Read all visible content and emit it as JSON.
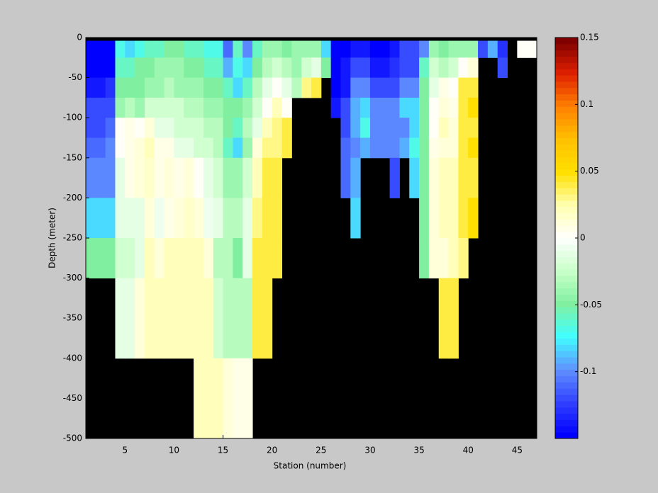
{
  "chart_data": {
    "type": "heatmap",
    "xlabel": "Station (number)",
    "ylabel": "Depth (meter)",
    "xlim": [
      1,
      47
    ],
    "ylim": [
      -500,
      0
    ],
    "xticks": [
      5,
      10,
      15,
      20,
      25,
      30,
      35,
      40,
      45
    ],
    "yticks": [
      0,
      -50,
      -100,
      -150,
      -200,
      -250,
      -300,
      -350,
      -400,
      -450,
      -500
    ],
    "x_edges": [
      1,
      2,
      3,
      4,
      5,
      6,
      7,
      8,
      9,
      10,
      11,
      12,
      13,
      14,
      15,
      16,
      17,
      18,
      19,
      20,
      21,
      22,
      23,
      24,
      25,
      26,
      27,
      28,
      29,
      30,
      31,
      32,
      33,
      34,
      35,
      36,
      37,
      38,
      39,
      40,
      41,
      42,
      43,
      44,
      45,
      46,
      47
    ],
    "y_edges": [
      -4,
      -25,
      -50,
      -75,
      -100,
      -125,
      -150,
      -200,
      -250,
      -300,
      -400,
      -500
    ],
    "z": [
      [
        -0.15,
        -0.15,
        -0.14,
        -0.12,
        -0.12,
        -0.11,
        -0.1,
        -0.08,
        -0.05,
        null,
        null
      ],
      [
        -0.15,
        -0.15,
        -0.14,
        -0.12,
        -0.12,
        -0.11,
        -0.1,
        -0.08,
        -0.05,
        null,
        null
      ],
      [
        -0.15,
        -0.15,
        -0.13,
        -0.12,
        -0.11,
        -0.1,
        -0.1,
        -0.08,
        -0.05,
        null,
        null
      ],
      [
        -0.07,
        -0.06,
        -0.05,
        -0.04,
        0,
        0,
        -0.01,
        -0.01,
        -0.02,
        -0.01,
        null
      ],
      [
        -0.08,
        -0.06,
        -0.05,
        -0.03,
        0.005,
        0.005,
        0.005,
        -0.01,
        -0.02,
        -0.01,
        null
      ],
      [
        -0.07,
        -0.05,
        -0.05,
        -0.04,
        0,
        0.01,
        0.01,
        -0.01,
        -0.01,
        0.01,
        null
      ],
      [
        -0.06,
        -0.05,
        -0.04,
        -0.02,
        0.01,
        0.02,
        0.015,
        0.01,
        0.02,
        0.02,
        null
      ],
      [
        -0.06,
        -0.04,
        -0.04,
        -0.02,
        -0.01,
        0.005,
        0.005,
        -0.005,
        0.01,
        0.02,
        null
      ],
      [
        -0.05,
        -0.04,
        -0.03,
        -0.02,
        -0.01,
        0.005,
        0.01,
        0.005,
        0.02,
        0.02,
        null
      ],
      [
        -0.05,
        -0.04,
        -0.04,
        -0.02,
        -0.02,
        -0.01,
        0.005,
        0.01,
        0.02,
        0.02,
        null
      ],
      [
        -0.06,
        -0.05,
        -0.04,
        -0.03,
        -0.02,
        -0.01,
        0.01,
        0.015,
        0.02,
        0.02,
        null
      ],
      [
        -0.06,
        -0.05,
        -0.04,
        -0.03,
        -0.02,
        -0.02,
        0,
        0.01,
        0.02,
        0.02,
        0.02
      ],
      [
        -0.07,
        -0.06,
        -0.05,
        -0.04,
        -0.03,
        -0.02,
        -0.01,
        -0.005,
        0.01,
        0.02,
        0.02
      ],
      [
        -0.07,
        -0.06,
        -0.05,
        -0.04,
        -0.03,
        -0.03,
        -0.02,
        -0.01,
        -0.03,
        -0.02,
        0.02
      ],
      [
        -0.11,
        -0.09,
        -0.06,
        -0.05,
        -0.05,
        -0.06,
        -0.04,
        -0.03,
        -0.03,
        -0.03,
        0.01
      ],
      [
        -0.06,
        -0.07,
        -0.08,
        -0.05,
        -0.06,
        -0.08,
        -0.04,
        -0.03,
        -0.05,
        -0.03,
        0.005
      ],
      [
        -0.1,
        -0.08,
        -0.06,
        -0.04,
        -0.03,
        -0.04,
        -0.02,
        -0.01,
        -0.01,
        -0.03,
        0.005
      ],
      [
        -0.06,
        -0.05,
        -0.03,
        -0.02,
        -0.01,
        0.01,
        0.02,
        0.03,
        0.04,
        0.04,
        null
      ],
      [
        -0.04,
        -0.03,
        -0.01,
        0,
        0.02,
        0.03,
        0.04,
        0.04,
        0.04,
        0.04,
        null
      ],
      [
        -0.04,
        -0.02,
        0,
        0.02,
        0.03,
        0.03,
        0.04,
        0.04,
        0.04,
        null,
        null
      ],
      [
        -0.05,
        -0.03,
        -0.01,
        0,
        0.04,
        0.04,
        null,
        null,
        null,
        null,
        null
      ],
      [
        -0.04,
        -0.04,
        -0.03,
        null,
        null,
        null,
        null,
        null,
        null,
        null,
        null
      ],
      [
        -0.04,
        -0.02,
        0.03,
        null,
        null,
        null,
        null,
        null,
        null,
        null,
        null
      ],
      [
        -0.04,
        -0.01,
        0.04,
        null,
        null,
        null,
        null,
        null,
        null,
        null,
        null
      ],
      [
        -0.08,
        -0.05,
        null,
        null,
        null,
        null,
        null,
        null,
        null,
        null,
        null
      ],
      [
        -0.15,
        -0.15,
        -0.15,
        -0.14,
        null,
        null,
        null,
        null,
        null,
        null,
        null
      ],
      [
        -0.15,
        -0.14,
        -0.14,
        -0.12,
        -0.12,
        -0.11,
        -0.11,
        null,
        null,
        null,
        null
      ],
      [
        -0.14,
        -0.12,
        -0.1,
        -0.09,
        -0.09,
        -0.1,
        -0.09,
        -0.08,
        null,
        null,
        null
      ],
      [
        -0.14,
        -0.12,
        -0.1,
        -0.08,
        -0.07,
        -0.09,
        null,
        null,
        null,
        null,
        null
      ],
      [
        -0.15,
        -0.14,
        -0.12,
        -0.1,
        -0.1,
        -0.1,
        null,
        null,
        null,
        null,
        null
      ],
      [
        -0.15,
        -0.14,
        -0.12,
        -0.1,
        -0.1,
        -0.1,
        null,
        null,
        null,
        null,
        null
      ],
      [
        -0.14,
        -0.13,
        -0.12,
        -0.1,
        -0.1,
        -0.1,
        -0.12,
        null,
        null,
        null,
        null
      ],
      [
        -0.12,
        -0.12,
        -0.1,
        -0.08,
        -0.1,
        -0.09,
        null,
        null,
        null,
        null,
        null
      ],
      [
        -0.12,
        -0.12,
        -0.1,
        -0.08,
        -0.08,
        -0.07,
        -0.08,
        null,
        null,
        null,
        null
      ],
      [
        -0.1,
        -0.06,
        -0.05,
        -0.05,
        -0.05,
        -0.05,
        -0.05,
        -0.05,
        -0.05,
        null,
        null
      ],
      [
        -0.04,
        -0.02,
        -0.01,
        0,
        0,
        0.005,
        0.01,
        0.01,
        0.01,
        null,
        null
      ],
      [
        -0.05,
        -0.03,
        0.005,
        0.01,
        0.02,
        0.01,
        0.02,
        0.02,
        0.01,
        0.04,
        null
      ],
      [
        -0.04,
        -0.02,
        0,
        0.005,
        0.01,
        0.01,
        0.02,
        0.02,
        0.02,
        0.04,
        null
      ],
      [
        -0.04,
        0,
        0.04,
        0.04,
        0.04,
        0.04,
        0.04,
        0.04,
        0.03,
        null,
        null
      ],
      [
        -0.04,
        0.01,
        0.04,
        0.05,
        0.04,
        0.05,
        0.04,
        0.05,
        null,
        null,
        null
      ],
      [
        -0.12,
        null,
        null,
        null,
        null,
        null,
        null,
        null,
        null,
        null,
        null
      ],
      [
        -0.09,
        null,
        null,
        null,
        null,
        null,
        null,
        null,
        null,
        null,
        null
      ],
      [
        -0.13,
        -0.12,
        null,
        null,
        null,
        null,
        null,
        null,
        null,
        null,
        null
      ],
      [
        null,
        null,
        null,
        null,
        null,
        null,
        null,
        null,
        null,
        null,
        null
      ],
      [
        0,
        null,
        null,
        null,
        null,
        null,
        null,
        null,
        null,
        null,
        null
      ],
      [
        0,
        null,
        null,
        null,
        null,
        null,
        null,
        null,
        null,
        null,
        null
      ]
    ],
    "clim": [
      -0.15,
      0.15
    ],
    "cticks": [
      0.15,
      0.1,
      0.05,
      0,
      -0.05,
      -0.1
    ],
    "colormap": [
      "#0000ff",
      "#3040ff",
      "#6090ff",
      "#40ffff",
      "#80f0a0",
      "#c8ffc8",
      "#ffffff",
      "#ffffb0",
      "#ffe000",
      "#ffc000",
      "#ff8000",
      "#e02000",
      "#800000"
    ],
    "missing_color": "#000000"
  }
}
